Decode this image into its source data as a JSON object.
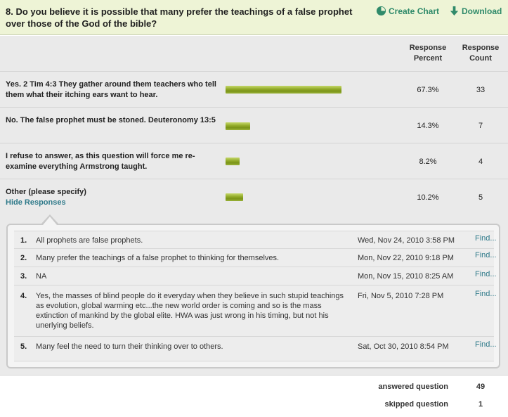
{
  "question": {
    "title": "8. Do you believe it is possible that many prefer the teachings of a false prophet over those of the God of the bible?"
  },
  "toolbar": {
    "create_chart": "Create Chart",
    "download": "Download",
    "create_chart_icon": "pie-chart-icon",
    "download_icon": "download-arrow-icon"
  },
  "columns": {
    "percent_header": "Response Percent",
    "count_header": "Response Count"
  },
  "answers": [
    {
      "label": "Yes. 2 Tim 4:3 They gather around them teachers who tell them what their itching ears want to hear.",
      "percent": "67.3%",
      "percent_value": 67.3,
      "count": "33"
    },
    {
      "label": "No. The false prophet must be stoned. Deuteronomy 13:5",
      "percent": "14.3%",
      "percent_value": 14.3,
      "count": "7"
    },
    {
      "label": "I refuse to answer, as this question will force me re-examine everything Armstrong taught.",
      "percent": "8.2%",
      "percent_value": 8.2,
      "count": "4"
    },
    {
      "label": "Other (please specify)",
      "percent": "10.2%",
      "percent_value": 10.2,
      "count": "5",
      "toggle": "Hide Responses"
    }
  ],
  "responses": [
    {
      "num": "1.",
      "text": "All prophets are false prophets.",
      "date": "Wed, Nov 24, 2010 3:58 PM",
      "action": "Find..."
    },
    {
      "num": "2.",
      "text": "Many prefer the teachings of a false prophet to thinking for themselves.",
      "date": "Mon, Nov 22, 2010 9:18 PM",
      "action": "Find..."
    },
    {
      "num": "3.",
      "text": "NA",
      "date": "Mon, Nov 15, 2010 8:25 AM",
      "action": "Find..."
    },
    {
      "num": "4.",
      "text": "Yes, the masses of blind people do it everyday when they believe in such stupid teachings as evolution, global warming etc...the new world order is coming and so is the mass extinction of mankind by the global elite. HWA was just wrong in his timing, but not his unerlying beliefs.",
      "date": "Fri, Nov 5, 2010 7:28 PM",
      "action": "Find..."
    },
    {
      "num": "5.",
      "text": "Many feel the need to turn their thinking over to others.",
      "date": "Sat, Oct 30, 2010 8:54 PM",
      "action": "Find..."
    }
  ],
  "summary": {
    "answered_label": "answered question",
    "answered_value": "49",
    "skipped_label": "skipped question",
    "skipped_value": "1"
  },
  "colors": {
    "header_bg": "#eef4d6",
    "bar_green": "#8fa826",
    "link_teal": "#2f7a8a"
  }
}
